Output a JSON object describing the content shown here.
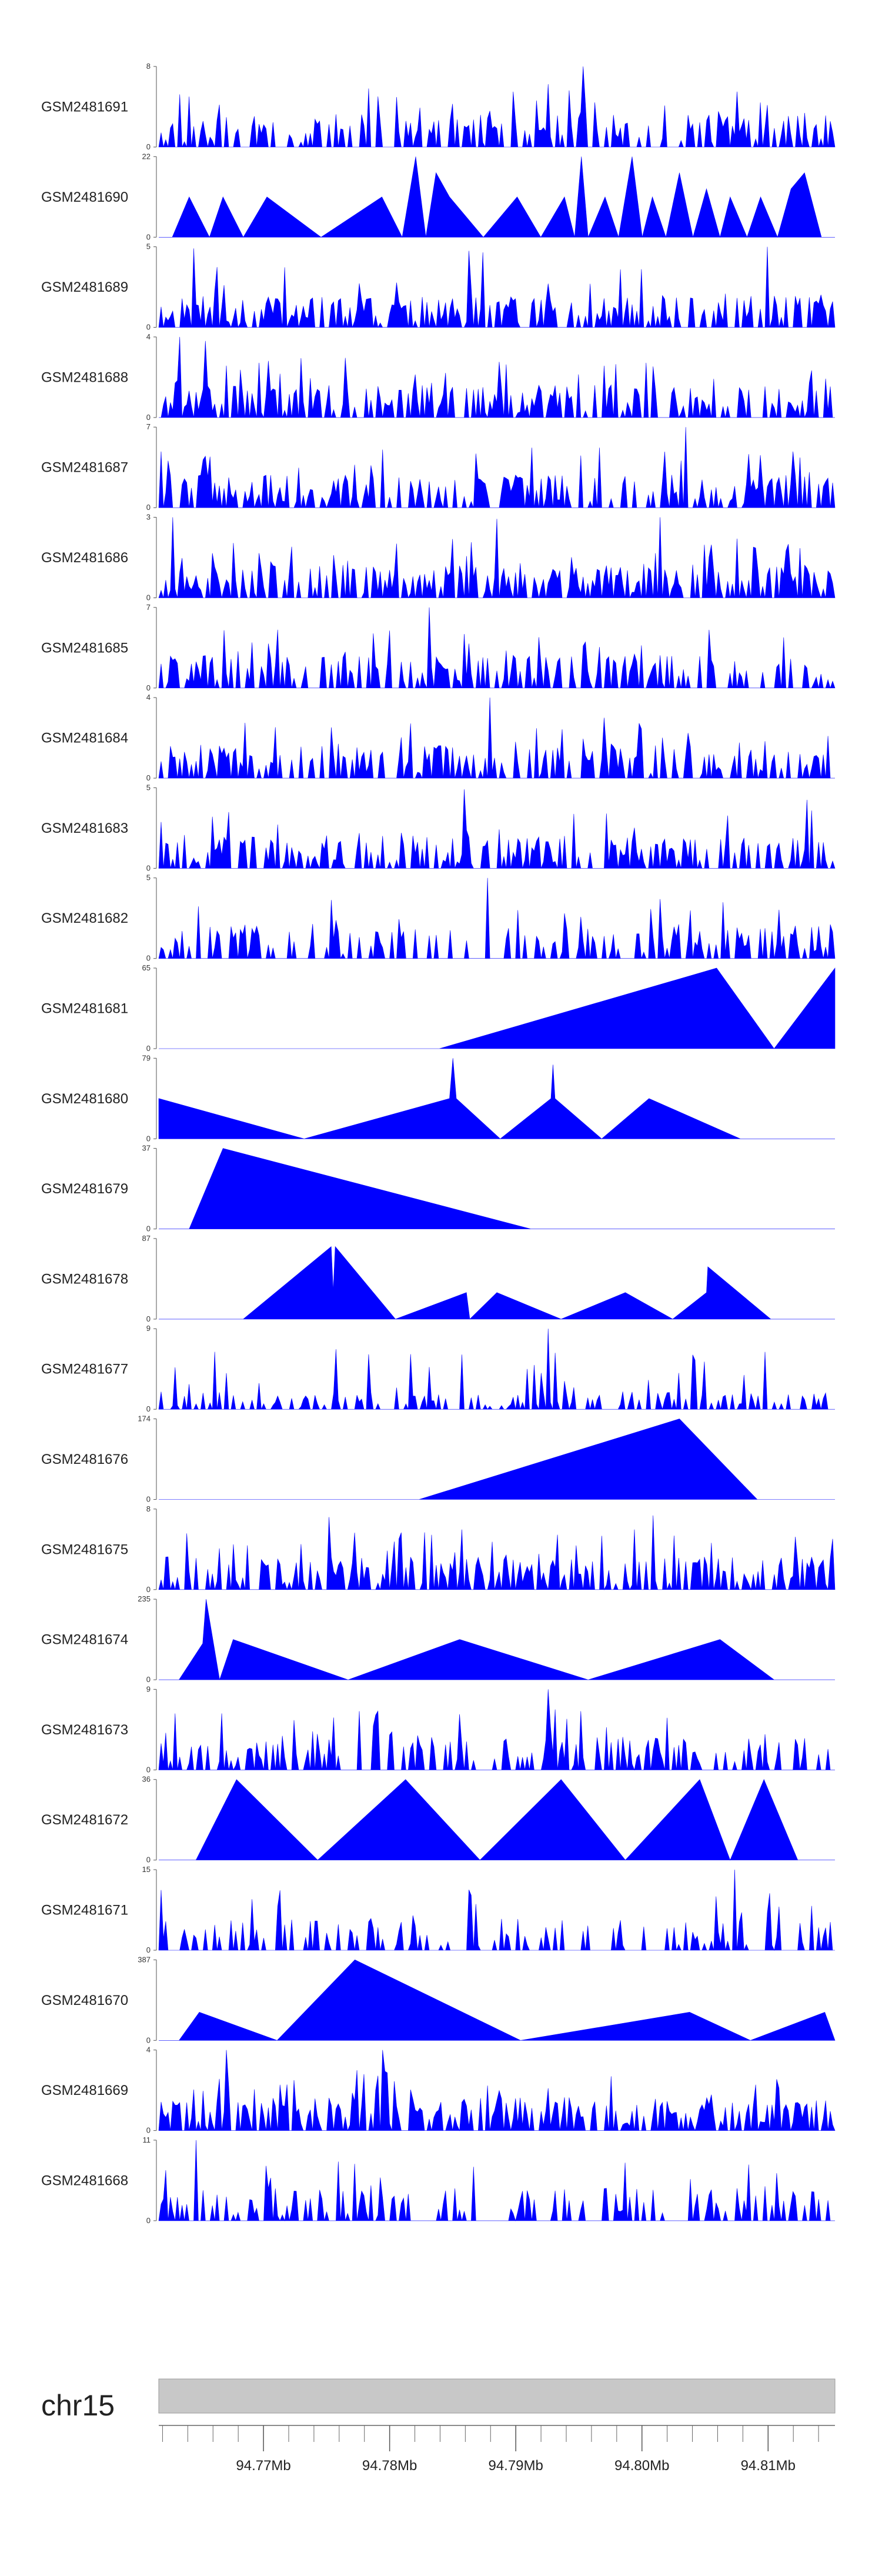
{
  "chart_data": {
    "type": "area",
    "title": "",
    "track_color": "#0000ff",
    "ideogram_color": "#c8c8c8",
    "chromosome": "chr15",
    "xlim": [
      94.7617,
      94.8153
    ],
    "x_unit": "Mb",
    "x_ticks": [
      {
        "value": 94.77,
        "label": "94.77Mb"
      },
      {
        "value": 94.78,
        "label": "94.78Mb"
      },
      {
        "value": 94.79,
        "label": "94.79Mb"
      },
      {
        "value": 94.8,
        "label": "94.80Mb"
      },
      {
        "value": 94.81,
        "label": "94.81Mb"
      }
    ],
    "x_minor_step": 0.002,
    "tracks": [
      {
        "name": "GSM2481691",
        "ymax": "8",
        "ymin": "0",
        "kind": "dense",
        "seed": 11,
        "density": 0.55,
        "peaks": [
          [
            0.628,
            1.0
          ],
          [
            0.575,
            0.78
          ],
          [
            0.35,
            0.62
          ]
        ]
      },
      {
        "name": "GSM2481690",
        "ymax": "22",
        "ymin": "0",
        "kind": "sparse",
        "points": [
          [
            0.0,
            0
          ],
          [
            0.02,
            0
          ],
          [
            0.045,
            0.5
          ],
          [
            0.075,
            0
          ],
          [
            0.095,
            0.5
          ],
          [
            0.125,
            0
          ],
          [
            0.16,
            0.5
          ],
          [
            0.24,
            0
          ],
          [
            0.33,
            0.5
          ],
          [
            0.36,
            0
          ],
          [
            0.38,
            1.0
          ],
          [
            0.395,
            0
          ],
          [
            0.41,
            0.8
          ],
          [
            0.43,
            0.5
          ],
          [
            0.48,
            0
          ],
          [
            0.53,
            0.5
          ],
          [
            0.565,
            0
          ],
          [
            0.6,
            0.5
          ],
          [
            0.615,
            0
          ],
          [
            0.625,
            1.0
          ],
          [
            0.635,
            0
          ],
          [
            0.66,
            0.5
          ],
          [
            0.68,
            0
          ],
          [
            0.7,
            1.0
          ],
          [
            0.715,
            0
          ],
          [
            0.73,
            0.5
          ],
          [
            0.75,
            0
          ],
          [
            0.77,
            0.8
          ],
          [
            0.79,
            0
          ],
          [
            0.81,
            0.6
          ],
          [
            0.83,
            0
          ],
          [
            0.845,
            0.5
          ],
          [
            0.87,
            0
          ],
          [
            0.89,
            0.5
          ],
          [
            0.915,
            0
          ],
          [
            0.935,
            0.6
          ],
          [
            0.955,
            0.8
          ],
          [
            0.98,
            0
          ],
          [
            1.0,
            0
          ]
        ]
      },
      {
        "name": "GSM2481689",
        "ymax": "5",
        "ymin": "0",
        "kind": "dense",
        "seed": 23,
        "density": 0.65,
        "peaks": [
          [
            0.05,
            0.98
          ],
          [
            0.9,
            1.0
          ],
          [
            0.46,
            0.95
          ],
          [
            0.48,
            0.93
          ]
        ]
      },
      {
        "name": "GSM2481688",
        "ymax": "4",
        "ymin": "0",
        "kind": "dense",
        "seed": 37,
        "density": 0.6,
        "peaks": [
          [
            0.03,
            1.0
          ],
          [
            0.07,
            0.95
          ]
        ]
      },
      {
        "name": "GSM2481687",
        "ymax": "7",
        "ymin": "0",
        "kind": "dense",
        "seed": 41,
        "density": 0.6,
        "peaks": [
          [
            0.78,
            1.0
          ],
          [
            0.33,
            0.72
          ]
        ]
      },
      {
        "name": "GSM2481686",
        "ymax": "3",
        "ymin": "0",
        "kind": "dense",
        "seed": 53,
        "density": 0.65,
        "peaks": [
          [
            0.02,
            1.0
          ],
          [
            0.74,
            1.0
          ],
          [
            0.5,
            0.98
          ]
        ]
      },
      {
        "name": "GSM2481685",
        "ymax": "7",
        "ymin": "0",
        "kind": "dense",
        "seed": 67,
        "density": 0.55,
        "peaks": [
          [
            0.4,
            1.0
          ],
          [
            0.46,
            0.55
          ]
        ]
      },
      {
        "name": "GSM2481684",
        "ymax": "4",
        "ymin": "0",
        "kind": "dense",
        "seed": 71,
        "density": 0.6,
        "peaks": [
          [
            0.49,
            1.0
          ],
          [
            0.66,
            0.75
          ]
        ]
      },
      {
        "name": "GSM2481683",
        "ymax": "5",
        "ymin": "0",
        "kind": "dense",
        "seed": 83,
        "density": 0.6,
        "peaks": [
          [
            0.45,
            0.98
          ],
          [
            0.96,
            0.85
          ]
        ]
      },
      {
        "name": "GSM2481682",
        "ymax": "5",
        "ymin": "0",
        "kind": "dense",
        "seed": 97,
        "density": 0.5,
        "peaks": [
          [
            0.485,
            1.0
          ],
          [
            0.53,
            0.6
          ]
        ]
      },
      {
        "name": "GSM2481681",
        "ymax": "65",
        "ymin": "0",
        "kind": "sparse",
        "points": [
          [
            0.0,
            0
          ],
          [
            0.415,
            0
          ],
          [
            0.825,
            1.0
          ],
          [
            0.91,
            0
          ],
          [
            1.0,
            1.0
          ]
        ]
      },
      {
        "name": "GSM2481680",
        "ymax": "79",
        "ymin": "0",
        "kind": "sparse",
        "points": [
          [
            0.0,
            0.5
          ],
          [
            0.215,
            0
          ],
          [
            0.43,
            0.5
          ],
          [
            0.435,
            1.0
          ],
          [
            0.44,
            0.5
          ],
          [
            0.505,
            0
          ],
          [
            0.58,
            0.5
          ],
          [
            0.583,
            0.92
          ],
          [
            0.586,
            0.5
          ],
          [
            0.655,
            0
          ],
          [
            0.725,
            0.5
          ],
          [
            0.86,
            0
          ],
          [
            1.0,
            0
          ]
        ]
      },
      {
        "name": "GSM2481679",
        "ymax": "37",
        "ymin": "0",
        "kind": "sparse",
        "points": [
          [
            0.0,
            0
          ],
          [
            0.045,
            0
          ],
          [
            0.095,
            1.0
          ],
          [
            0.55,
            0
          ],
          [
            1.0,
            0
          ]
        ]
      },
      {
        "name": "GSM2481678",
        "ymax": "87",
        "ymin": "0",
        "kind": "sparse",
        "points": [
          [
            0.0,
            0
          ],
          [
            0.125,
            0
          ],
          [
            0.255,
            0.9
          ],
          [
            0.258,
            0.35
          ],
          [
            0.261,
            0.9
          ],
          [
            0.35,
            0
          ],
          [
            0.455,
            0.33
          ],
          [
            0.46,
            0
          ],
          [
            0.5,
            0.33
          ],
          [
            0.595,
            0
          ],
          [
            0.69,
            0.33
          ],
          [
            0.76,
            0
          ],
          [
            0.81,
            0.33
          ],
          [
            0.812,
            0.65
          ],
          [
            0.905,
            0
          ],
          [
            1.0,
            0
          ]
        ]
      },
      {
        "name": "GSM2481677",
        "ymax": "9",
        "ymin": "0",
        "kind": "dense",
        "seed": 101,
        "density": 0.4,
        "low": 0.12,
        "peaks": [
          [
            0.575,
            1.0
          ],
          [
            0.585,
            0.7
          ],
          [
            0.545,
            0.5
          ],
          [
            0.555,
            0.55
          ],
          [
            0.6,
            0.35
          ],
          [
            0.77,
            0.45
          ],
          [
            0.565,
            0.45
          ]
        ]
      },
      {
        "name": "GSM2481676",
        "ymax": "174",
        "ymin": "0",
        "kind": "sparse",
        "points": [
          [
            0.0,
            0
          ],
          [
            0.385,
            0
          ],
          [
            0.77,
            1.0
          ],
          [
            0.885,
            0
          ],
          [
            1.0,
            0
          ]
        ]
      },
      {
        "name": "GSM2481675",
        "ymax": "8",
        "ymin": "0",
        "kind": "dense",
        "seed": 113,
        "density": 0.6,
        "peaks": [
          [
            0.73,
            0.92
          ],
          [
            0.25,
            0.9
          ]
        ]
      },
      {
        "name": "GSM2481674",
        "ymax": "235",
        "ymin": "0",
        "kind": "sparse",
        "points": [
          [
            0.0,
            0
          ],
          [
            0.03,
            0
          ],
          [
            0.065,
            0.45
          ],
          [
            0.07,
            1.0
          ],
          [
            0.09,
            0
          ],
          [
            0.11,
            0.5
          ],
          [
            0.28,
            0
          ],
          [
            0.445,
            0.5
          ],
          [
            0.635,
            0
          ],
          [
            0.83,
            0.5
          ],
          [
            0.91,
            0
          ],
          [
            1.0,
            0
          ]
        ]
      },
      {
        "name": "GSM2481673",
        "ymax": "9",
        "ymin": "0",
        "kind": "dense",
        "seed": 127,
        "density": 0.45,
        "peaks": [
          [
            0.575,
            1.0
          ],
          [
            0.025,
            0.7
          ],
          [
            0.26,
            0.65
          ]
        ]
      },
      {
        "name": "GSM2481672",
        "ymax": "36",
        "ymin": "0",
        "kind": "sparse",
        "points": [
          [
            0.0,
            0
          ],
          [
            0.055,
            0
          ],
          [
            0.115,
            1.0
          ],
          [
            0.235,
            0
          ],
          [
            0.365,
            1.0
          ],
          [
            0.475,
            0
          ],
          [
            0.595,
            1.0
          ],
          [
            0.69,
            0
          ],
          [
            0.8,
            1.0
          ],
          [
            0.845,
            0
          ],
          [
            0.895,
            1.0
          ],
          [
            0.945,
            0
          ],
          [
            1.0,
            0
          ]
        ]
      },
      {
        "name": "GSM2481671",
        "ymax": "15",
        "ymin": "0",
        "kind": "dense",
        "seed": 139,
        "density": 0.35,
        "peaks": [
          [
            0.85,
            1.0
          ],
          [
            0.46,
            0.75
          ],
          [
            0.965,
            0.55
          ]
        ]
      },
      {
        "name": "GSM2481670",
        "ymax": "387",
        "ymin": "0",
        "kind": "sparse",
        "points": [
          [
            0.0,
            0
          ],
          [
            0.03,
            0
          ],
          [
            0.06,
            0.35
          ],
          [
            0.175,
            0
          ],
          [
            0.29,
            1.0
          ],
          [
            0.535,
            0
          ],
          [
            0.785,
            0.35
          ],
          [
            0.875,
            0
          ],
          [
            0.985,
            0.35
          ],
          [
            1.0,
            0
          ]
        ]
      },
      {
        "name": "GSM2481669",
        "ymax": "4",
        "ymin": "0",
        "kind": "dense",
        "seed": 151,
        "density": 0.65,
        "peaks": [
          [
            0.1,
            1.0
          ],
          [
            0.33,
            1.0
          ]
        ]
      },
      {
        "name": "GSM2481668",
        "ymax": "11",
        "ymin": "0",
        "kind": "dense",
        "seed": 163,
        "density": 0.45,
        "peaks": [
          [
            0.055,
            1.0
          ],
          [
            0.69,
            0.72
          ]
        ]
      }
    ]
  }
}
